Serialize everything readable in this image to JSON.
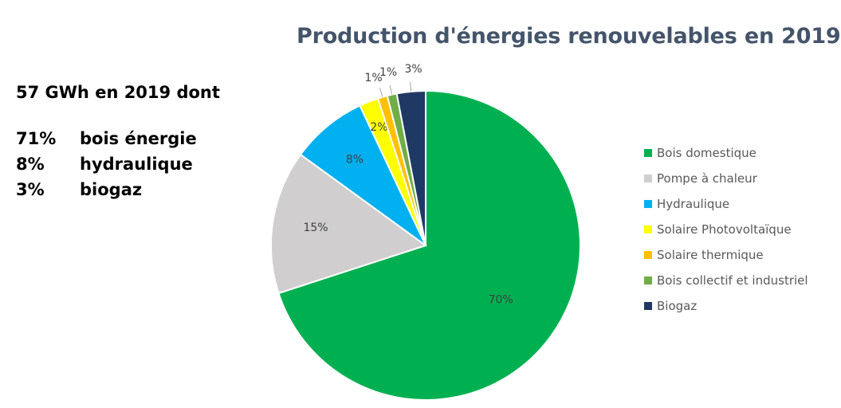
{
  "summary": {
    "headline": "57 GWh en 2019 dont",
    "rows": [
      {
        "pct": "71%",
        "label": "bois énergie"
      },
      {
        "pct": "8%",
        "label": "hydraulique"
      },
      {
        "pct": "3%",
        "label": "biogaz"
      }
    ]
  },
  "chart_data": {
    "type": "pie",
    "title": "Production d'énergies renouvelables en 2019",
    "legend_position": "right",
    "slices": [
      {
        "name": "Bois domestique",
        "value": 70,
        "label": "70%",
        "color": "#00b050"
      },
      {
        "name": "Pompe à chaleur",
        "value": 15,
        "label": "15%",
        "color": "#d0cece"
      },
      {
        "name": "Hydraulique",
        "value": 8,
        "label": "8%",
        "color": "#00b0f0"
      },
      {
        "name": "Solaire Photovoltaïque",
        "value": 2,
        "label": "2%",
        "color": "#ffff00"
      },
      {
        "name": "Solaire thermique",
        "value": 1,
        "label": "1%",
        "color": "#ffc000"
      },
      {
        "name": "Bois collectif et industriel",
        "value": 1,
        "label": "1%",
        "color": "#70ad47"
      },
      {
        "name": "Biogaz",
        "value": 3,
        "label": "3%",
        "color": "#203864"
      }
    ]
  }
}
